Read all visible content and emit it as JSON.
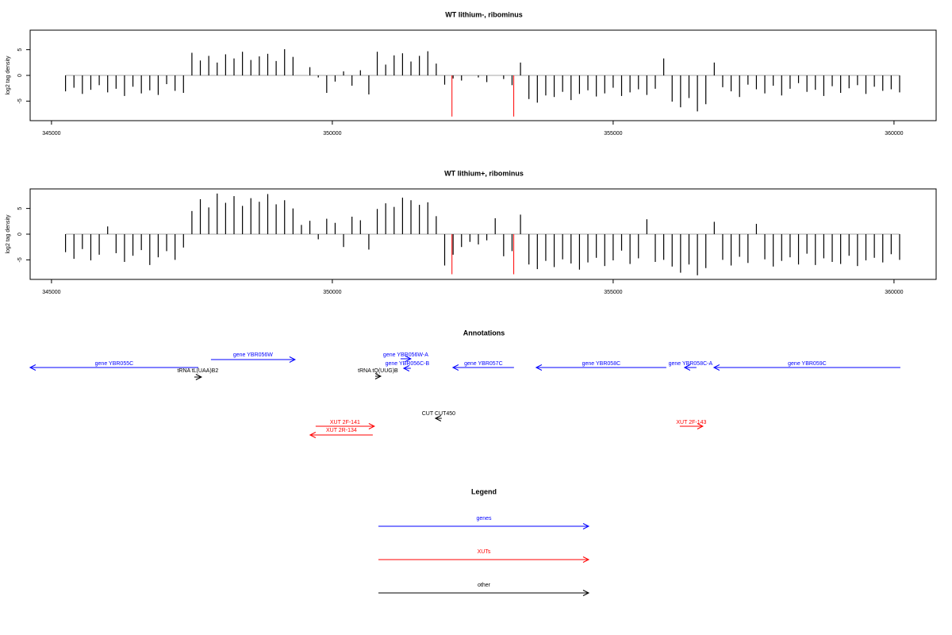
{
  "chart_data": [
    {
      "type": "needle",
      "title": "WT lithium-, ribominus",
      "y_label": "log2 tag density",
      "color": "#000000",
      "xlim": [
        344620,
        360750
      ],
      "xticks": [
        345000,
        350000,
        355000,
        360000
      ],
      "ylim": [
        -8.8,
        8.8
      ],
      "yticks": [
        -5,
        0,
        5
      ],
      "x": [
        345250,
        345400,
        345550,
        345700,
        345850,
        346000,
        346150,
        346300,
        346450,
        346600,
        346750,
        346900,
        347050,
        347200,
        347350,
        347500,
        347650,
        347800,
        347950,
        348100,
        348250,
        348400,
        348550,
        348700,
        348850,
        349000,
        349150,
        349300,
        349450,
        349600,
        349750,
        349900,
        350050,
        350200,
        350350,
        350500,
        350650,
        350800,
        350950,
        351100,
        351250,
        351400,
        351550,
        351700,
        351850,
        352000,
        352150,
        352300,
        352450,
        352600,
        352750,
        352900,
        353050,
        353200,
        353350,
        353500,
        353650,
        353800,
        353950,
        354100,
        354250,
        354400,
        354550,
        354700,
        354850,
        355000,
        355150,
        355300,
        355450,
        355600,
        355750,
        355900,
        356050,
        356200,
        356350,
        356500,
        356650,
        356800,
        356950,
        357100,
        357250,
        357400,
        357550,
        357700,
        357850,
        358000,
        358150,
        358300,
        358450,
        358600,
        358750,
        358900,
        359050,
        359200,
        359350,
        359500,
        359650,
        359800,
        359950,
        360100
      ],
      "values": [
        -3.1,
        -2.4,
        -3.6,
        -2.8,
        -1.9,
        -3.3,
        -2.6,
        -4.0,
        -2.2,
        -3.5,
        -2.9,
        -3.8,
        -1.7,
        -3.0,
        -3.4,
        4.4,
        2.9,
        3.8,
        2.5,
        4.1,
        3.3,
        4.6,
        3.0,
        3.7,
        4.2,
        2.8,
        5.1,
        3.6,
        0,
        1.6,
        -0.4,
        -3.4,
        -1.2,
        0.8,
        -2.0,
        1.0,
        -3.7,
        4.6,
        2.1,
        3.9,
        4.3,
        2.7,
        3.8,
        4.7,
        2.3,
        -1.8,
        -0.6,
        -1.0,
        0,
        -0.4,
        -1.3,
        0,
        -0.7,
        -1.9,
        2.5,
        -4.6,
        -5.3,
        -3.9,
        -4.2,
        -3.2,
        -4.8,
        -3.6,
        -2.9,
        -4.1,
        -3.5,
        -2.4,
        -4.0,
        -3.3,
        -2.7,
        -3.8,
        -2.6,
        3.3,
        -5.1,
        -6.2,
        -4.4,
        -7.0,
        -5.6,
        2.5,
        -2.3,
        -3.1,
        -4.2,
        -1.8,
        -2.7,
        -3.5,
        -2.0,
        -3.9,
        -2.6,
        -1.5,
        -3.2,
        -2.8,
        -4.0,
        -2.1,
        -3.4,
        -2.5,
        -1.9,
        -3.6,
        -2.2,
        -3.0,
        -2.7,
        -3.3
      ],
      "highlight": {
        "color": "#ff0000",
        "x": [
          352130,
          353230
        ],
        "values": [
          -8,
          -8
        ]
      }
    },
    {
      "type": "needle",
      "title": "WT lithium+, ribominus",
      "y_label": "log2 tag density",
      "color": "#000000",
      "xlim": [
        344620,
        360750
      ],
      "xticks": [
        345000,
        350000,
        355000,
        360000
      ],
      "ylim": [
        -8.8,
        8.8
      ],
      "yticks": [
        -5,
        0,
        5
      ],
      "x": [
        345250,
        345400,
        345550,
        345700,
        345850,
        346000,
        346150,
        346300,
        346450,
        346600,
        346750,
        346900,
        347050,
        347200,
        347350,
        347500,
        347650,
        347800,
        347950,
        348100,
        348250,
        348400,
        348550,
        348700,
        348850,
        349000,
        349150,
        349300,
        349450,
        349600,
        349750,
        349900,
        350050,
        350200,
        350350,
        350500,
        350650,
        350800,
        350950,
        351100,
        351250,
        351400,
        351550,
        351700,
        351850,
        352000,
        352150,
        352300,
        352450,
        352600,
        352750,
        352900,
        353050,
        353200,
        353350,
        353500,
        353650,
        353800,
        353950,
        354100,
        354250,
        354400,
        354550,
        354700,
        354850,
        355000,
        355150,
        355300,
        355450,
        355600,
        355750,
        355900,
        356050,
        356200,
        356350,
        356500,
        356650,
        356800,
        356950,
        357100,
        357250,
        357400,
        357550,
        357700,
        357850,
        358000,
        358150,
        358300,
        358450,
        358600,
        358750,
        358900,
        359050,
        359200,
        359350,
        359500,
        359650,
        359800,
        359950,
        360100
      ],
      "values": [
        -3.5,
        -4.8,
        -2.9,
        -5.1,
        -4.0,
        1.5,
        -3.7,
        -5.4,
        -4.2,
        -3.1,
        -6.0,
        -4.5,
        -3.3,
        -5.0,
        -2.6,
        4.5,
        6.8,
        5.2,
        7.9,
        6.1,
        7.4,
        5.5,
        7.0,
        6.3,
        7.8,
        5.8,
        6.6,
        5.0,
        1.8,
        2.6,
        -1.0,
        3.0,
        2.2,
        -2.5,
        3.4,
        2.7,
        -3.0,
        4.9,
        6.0,
        5.3,
        7.1,
        6.6,
        5.7,
        6.2,
        3.5,
        -6.1,
        -4.0,
        -2.5,
        -1.5,
        -2.0,
        -1.2,
        3.1,
        -4.3,
        -3.3,
        3.8,
        -5.9,
        -6.8,
        -5.2,
        -6.4,
        -4.9,
        -5.7,
        -6.9,
        -5.5,
        -4.6,
        -6.2,
        -5.1,
        -3.2,
        -5.8,
        -4.7,
        2.9,
        -5.4,
        -5.0,
        -6.3,
        -7.5,
        -5.9,
        -8.0,
        -6.6,
        2.4,
        -5.0,
        -6.1,
        -4.4,
        -5.6,
        2.0,
        -4.9,
        -6.3,
        -5.2,
        -4.5,
        -5.9,
        -3.8,
        -6.0,
        -4.7,
        -5.4,
        -5.8,
        -4.2,
        -6.2,
        -5.1,
        -4.6,
        -5.5,
        -3.9,
        -5.0
      ],
      "highlight": {
        "color": "#ff0000",
        "x": [
          352130,
          353230
        ],
        "values": [
          -7.8,
          -7.8
        ]
      }
    }
  ],
  "annotations": {
    "title": "Annotations",
    "items": [
      {
        "label": "gene YBR055C",
        "start": 344619,
        "end": 347613,
        "strand": "-",
        "color": "#0000ff"
      },
      {
        "label": "gene YBR056W",
        "start": 347839,
        "end": 349336,
        "strand": "+",
        "color": "#0000ff"
      },
      {
        "label": "tRNA tL(UAA)B2",
        "start": 347542,
        "end": 347669,
        "strand": "+",
        "color": "#000000"
      },
      {
        "label": "gene YBR056W-A",
        "start": 351215,
        "end": 351398,
        "strand": "+",
        "color": "#0000ff"
      },
      {
        "label": "gene YBR056C-B",
        "start": 351271,
        "end": 351398,
        "strand": "-",
        "color": "#0000ff"
      },
      {
        "label": "tRNA tQ(UUG)B",
        "start": 350763,
        "end": 350862,
        "strand": "+",
        "color": "#000000"
      },
      {
        "label": "gene YBR057C",
        "start": 352147,
        "end": 353234,
        "strand": "-",
        "color": "#0000ff"
      },
      {
        "label": "gene YBR058C",
        "start": 353630,
        "end": 355946,
        "strand": "-",
        "color": "#0000ff"
      },
      {
        "label": "gene YBR058C-A",
        "start": 356271,
        "end": 356483,
        "strand": "-",
        "color": "#0000ff"
      },
      {
        "label": "gene YBR059C",
        "start": 356794,
        "end": 360113,
        "strand": "-",
        "color": "#0000ff"
      },
      {
        "label": "CUT CUT450",
        "start": 351836,
        "end": 351949,
        "strand": "-",
        "color": "#000000"
      },
      {
        "label": "XUT 2F-141",
        "start": 349703,
        "end": 350748,
        "strand": "+",
        "color": "#ff0000"
      },
      {
        "label": "XUT 2R-134",
        "start": 349604,
        "end": 350720,
        "strand": "-",
        "color": "#ff0000"
      },
      {
        "label": "XUT 2F-143",
        "start": 356186,
        "end": 356596,
        "strand": "+",
        "color": "#ff0000"
      }
    ]
  },
  "legend": {
    "title": "Legend",
    "items": [
      {
        "label": "genes",
        "color": "#0000ff"
      },
      {
        "label": "XUTs",
        "color": "#ff0000"
      },
      {
        "label": "other",
        "color": "#000000"
      }
    ]
  }
}
